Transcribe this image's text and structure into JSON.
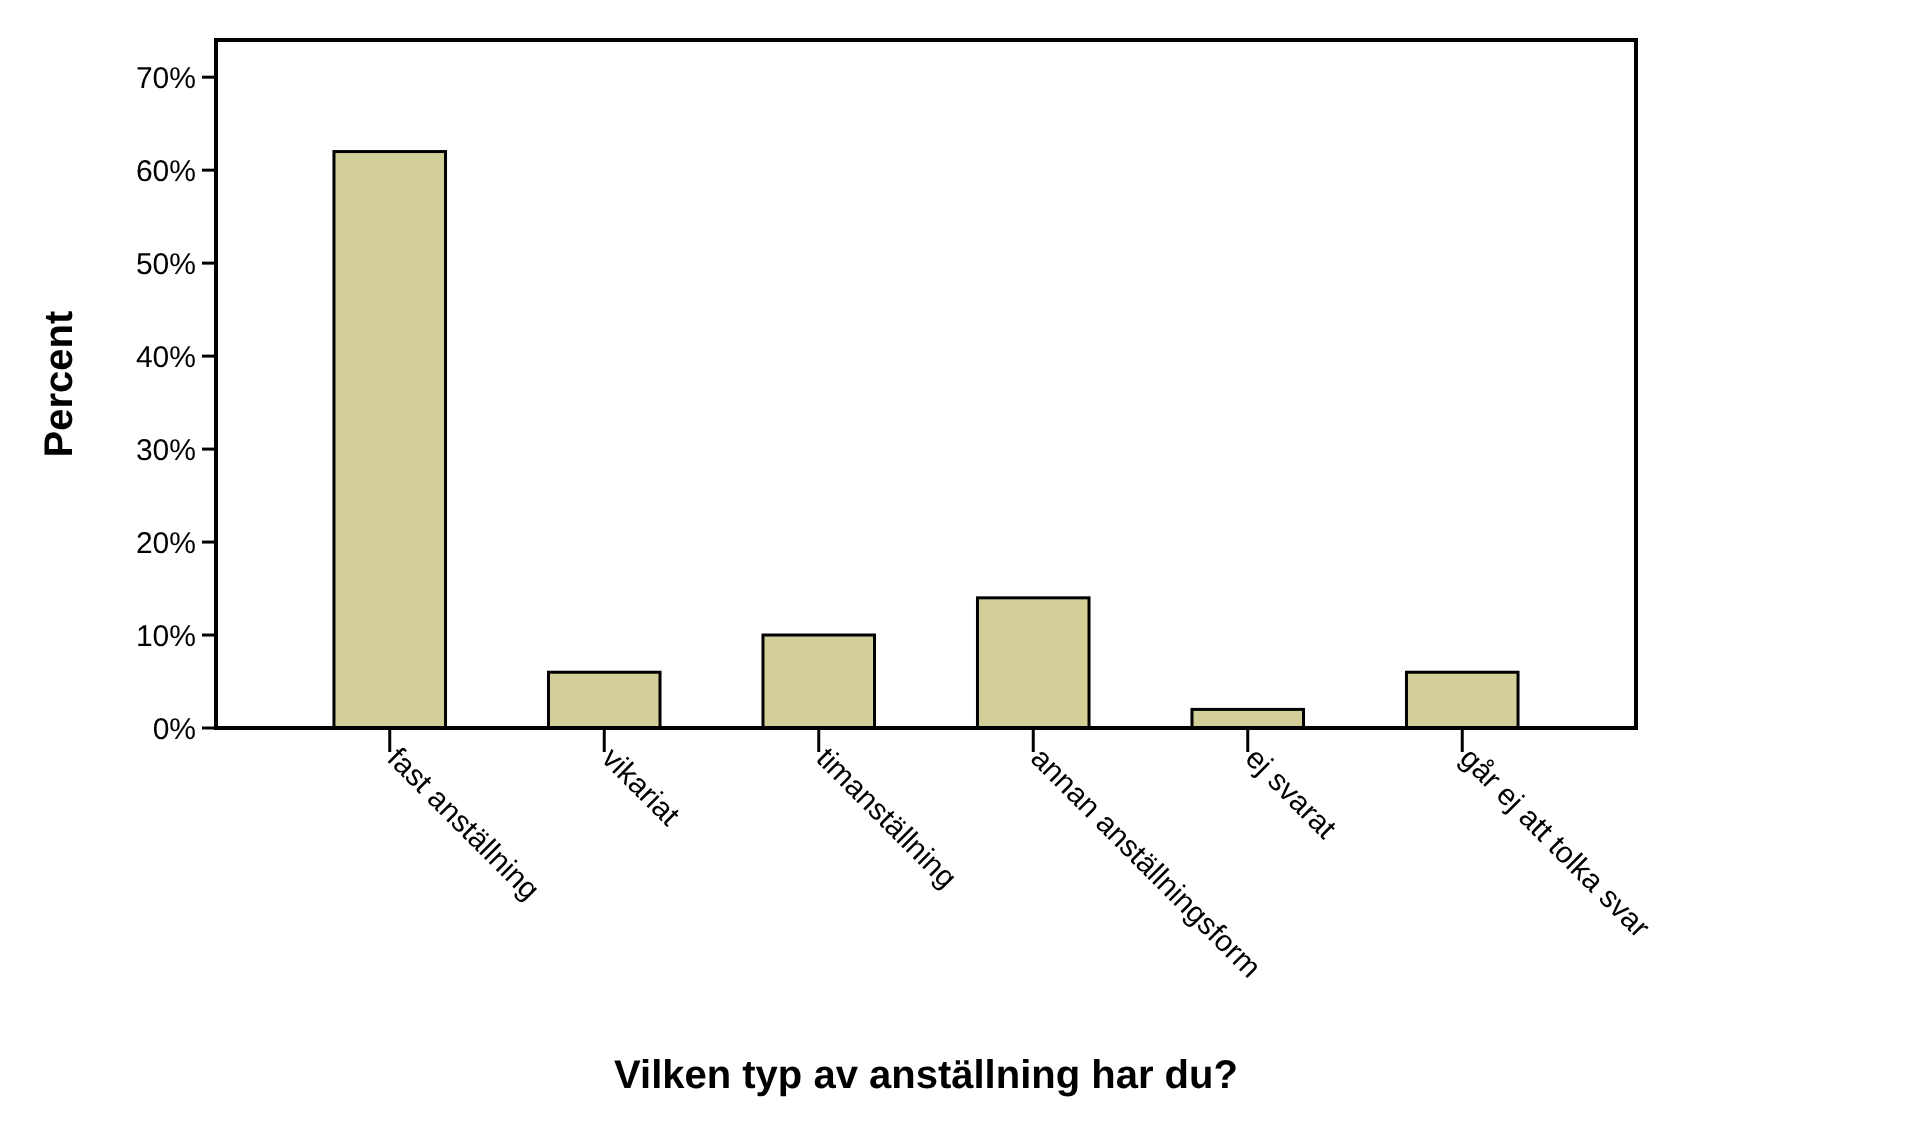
{
  "chart_data": {
    "type": "bar",
    "xlabel": "Vilken typ av anställning har du?",
    "ylabel": "Percent",
    "categories": [
      "fast anställning",
      "vikariat",
      "timanställning",
      "annan anställningsform",
      "ej svarat",
      "går ej att tolka svar"
    ],
    "values": [
      62,
      6,
      10,
      14,
      2,
      6
    ],
    "color": "#d3cf98",
    "ylim": [
      0,
      74
    ],
    "yticks": [
      {
        "value": 0,
        "label": "0%"
      },
      {
        "value": 10,
        "label": "10%"
      },
      {
        "value": 20,
        "label": "20%"
      },
      {
        "value": 30,
        "label": "30%"
      },
      {
        "value": 40,
        "label": "40%"
      },
      {
        "value": 50,
        "label": "50%"
      },
      {
        "value": 60,
        "label": "60%"
      },
      {
        "value": 70,
        "label": "70%"
      }
    ],
    "grid": false
  }
}
